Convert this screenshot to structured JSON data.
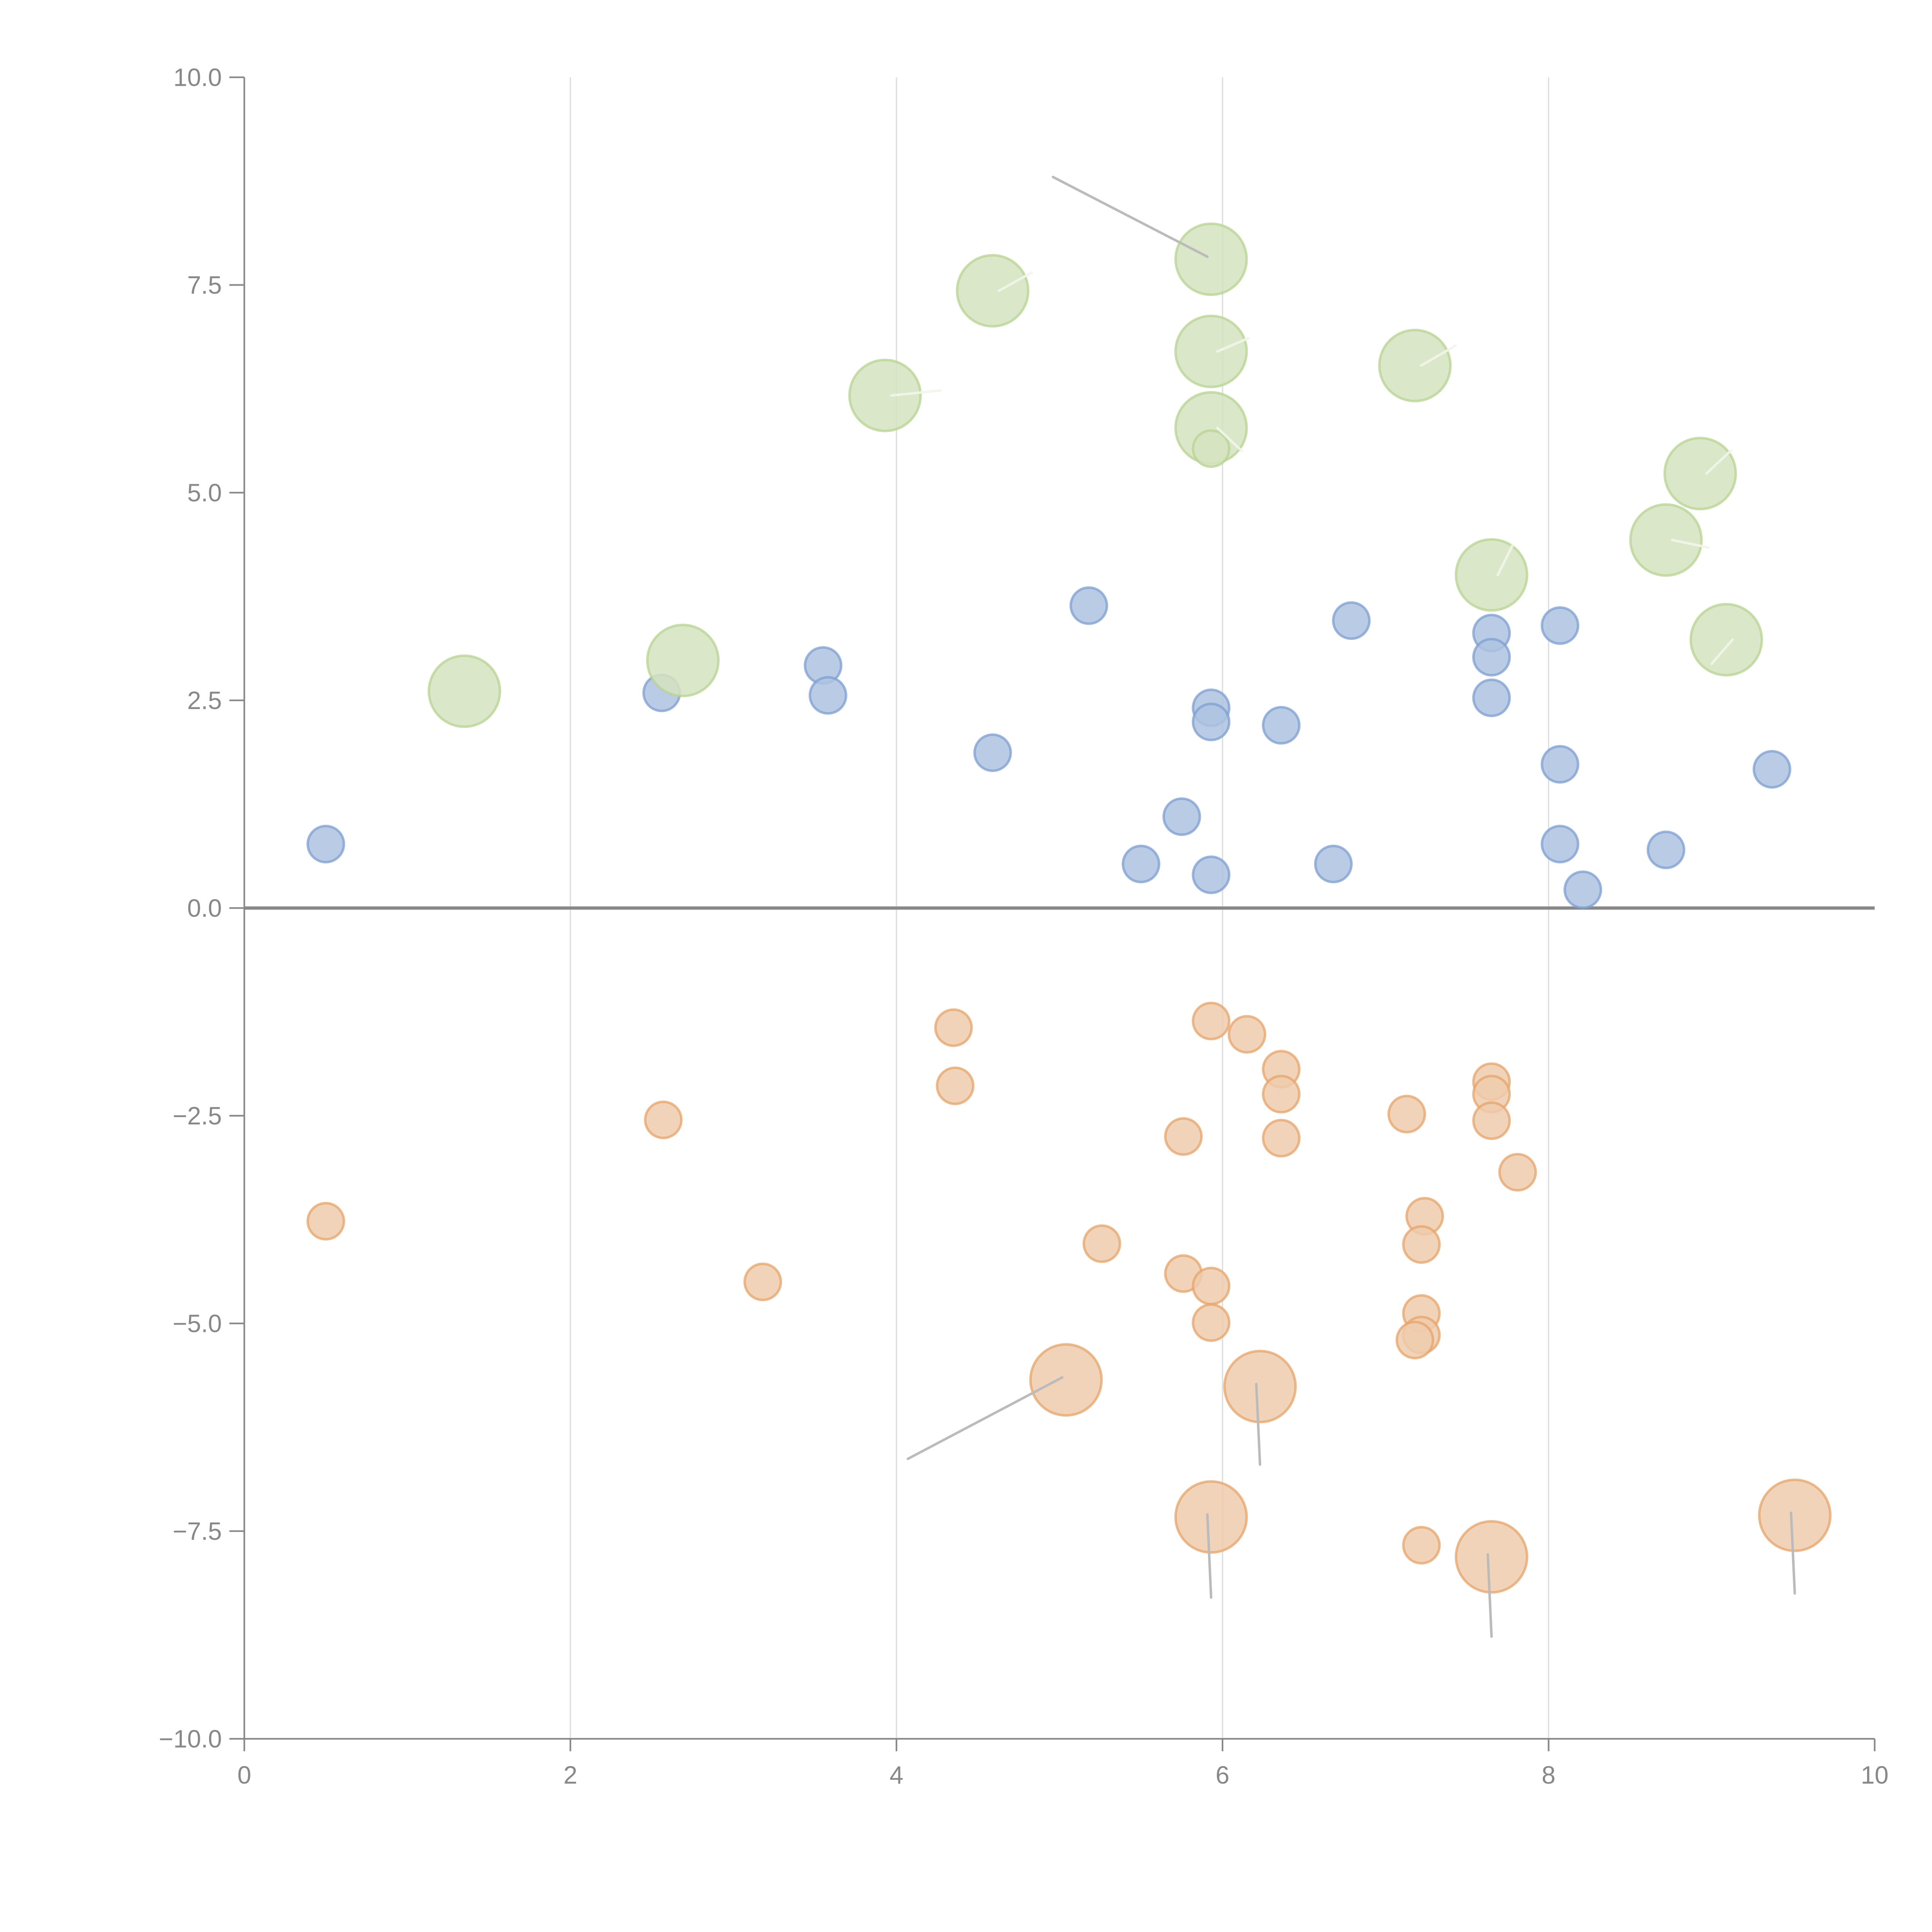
{
  "chart_data": {
    "type": "scatter",
    "title": "",
    "xlabel": "",
    "ylabel": "",
    "xlim": [
      0,
      10
    ],
    "ylim": [
      -10,
      10
    ],
    "grid": "vertical",
    "x_ticks": [
      0,
      2,
      4,
      6,
      8,
      10
    ],
    "x_tick_labels": [
      "0",
      "2",
      "4",
      "6",
      "8",
      "10"
    ],
    "y_ticks": [
      10,
      7.5,
      5,
      2.5,
      0,
      -2.5,
      -5,
      -7.5,
      -10
    ],
    "y_tick_labels": [
      "10.0",
      "7.5",
      "5.0",
      "2.5",
      "0.0",
      "−2.5",
      "−5.0",
      "−7.5",
      "−10.0"
    ],
    "series": [
      {
        "name": "blue",
        "color": "#aec3e0",
        "stroke": "#7d9fd0",
        "size": "small",
        "points": [
          {
            "x": 0.5,
            "y": 0.77
          },
          {
            "x": 2.56,
            "y": 2.59
          },
          {
            "x": 3.55,
            "y": 2.92
          },
          {
            "x": 3.58,
            "y": 2.56
          },
          {
            "x": 4.59,
            "y": 1.87
          },
          {
            "x": 5.18,
            "y": 3.64
          },
          {
            "x": 5.5,
            "y": 0.53
          },
          {
            "x": 5.75,
            "y": 1.1
          },
          {
            "x": 5.93,
            "y": 2.41
          },
          {
            "x": 5.93,
            "y": 2.24
          },
          {
            "x": 5.93,
            "y": 0.4
          },
          {
            "x": 6.36,
            "y": 2.2
          },
          {
            "x": 6.68,
            "y": 0.53
          },
          {
            "x": 6.79,
            "y": 3.46
          },
          {
            "x": 7.65,
            "y": 3.31
          },
          {
            "x": 7.65,
            "y": 3.02
          },
          {
            "x": 7.65,
            "y": 2.53
          },
          {
            "x": 8.07,
            "y": 3.4
          },
          {
            "x": 8.07,
            "y": 1.73
          },
          {
            "x": 8.07,
            "y": 0.77
          },
          {
            "x": 8.21,
            "y": 0.22
          },
          {
            "x": 8.72,
            "y": 0.7
          },
          {
            "x": 9.37,
            "y": 1.67
          }
        ]
      },
      {
        "name": "green",
        "color": "#d5e3bf",
        "stroke": "#b8d392",
        "points": [
          {
            "x": 1.35,
            "y": 2.61,
            "size": "large"
          },
          {
            "x": 2.69,
            "y": 2.98,
            "size": "large"
          },
          {
            "x": 3.93,
            "y": 6.17,
            "size": "large",
            "leader": "light",
            "leader_to": [
              4.27,
              6.23
            ]
          },
          {
            "x": 4.59,
            "y": 7.43,
            "size": "large",
            "leader": "light",
            "leader_to": [
              4.83,
              7.65
            ]
          },
          {
            "x": 5.93,
            "y": 7.81,
            "size": "large",
            "leader": "dark",
            "leader_to": [
              4.96,
              8.8
            ]
          },
          {
            "x": 5.93,
            "y": 6.7,
            "size": "large",
            "leader": "light",
            "leader_to": [
              6.16,
              6.86
            ]
          },
          {
            "x": 5.93,
            "y": 5.78,
            "size": "large",
            "leader": "light",
            "leader_to": [
              6.12,
              5.5
            ]
          },
          {
            "x": 5.93,
            "y": 5.53,
            "size": "small"
          },
          {
            "x": 7.18,
            "y": 6.53,
            "size": "large",
            "leader": "light",
            "leader_to": [
              7.43,
              6.77
            ]
          },
          {
            "x": 7.65,
            "y": 4.01,
            "size": "large",
            "leader": "light",
            "leader_to": [
              7.78,
              4.37
            ]
          },
          {
            "x": 8.72,
            "y": 4.43,
            "size": "large",
            "leader": "light",
            "leader_to": [
              8.98,
              4.34
            ]
          },
          {
            "x": 8.93,
            "y": 5.23,
            "size": "large",
            "leader": "light",
            "leader_to": [
              9.12,
              5.51
            ]
          },
          {
            "x": 9.09,
            "y": 3.23,
            "size": "large",
            "leader": "light",
            "leader_to": [
              9.0,
              2.94
            ]
          }
        ]
      },
      {
        "name": "orange",
        "color": "#efcbad",
        "stroke": "#e6a46b",
        "points": [
          {
            "x": 0.5,
            "y": -3.77,
            "size": "small"
          },
          {
            "x": 2.57,
            "y": -2.55,
            "size": "small"
          },
          {
            "x": 3.18,
            "y": -4.5,
            "size": "small"
          },
          {
            "x": 4.35,
            "y": -1.44,
            "size": "small"
          },
          {
            "x": 4.36,
            "y": -2.14,
            "size": "small"
          },
          {
            "x": 5.26,
            "y": -4.04,
            "size": "small"
          },
          {
            "x": 5.76,
            "y": -2.75,
            "size": "small"
          },
          {
            "x": 5.76,
            "y": -4.4,
            "size": "small"
          },
          {
            "x": 5.93,
            "y": -1.36,
            "size": "small"
          },
          {
            "x": 5.93,
            "y": -4.55,
            "size": "small"
          },
          {
            "x": 5.93,
            "y": -4.99,
            "size": "small"
          },
          {
            "x": 6.15,
            "y": -1.52,
            "size": "small"
          },
          {
            "x": 6.36,
            "y": -1.94,
            "size": "small"
          },
          {
            "x": 6.36,
            "y": -2.24,
            "size": "small"
          },
          {
            "x": 6.36,
            "y": -2.77,
            "size": "small"
          },
          {
            "x": 7.13,
            "y": -2.48,
            "size": "small"
          },
          {
            "x": 7.24,
            "y": -3.71,
            "size": "small"
          },
          {
            "x": 7.22,
            "y": -4.05,
            "size": "small"
          },
          {
            "x": 7.22,
            "y": -4.88,
            "size": "small"
          },
          {
            "x": 7.22,
            "y": -5.14,
            "size": "small"
          },
          {
            "x": 7.18,
            "y": -5.2,
            "size": "small"
          },
          {
            "x": 7.22,
            "y": -7.67,
            "size": "small"
          },
          {
            "x": 7.65,
            "y": -2.09,
            "size": "small"
          },
          {
            "x": 7.65,
            "y": -2.24,
            "size": "small"
          },
          {
            "x": 7.65,
            "y": -2.56,
            "size": "small"
          },
          {
            "x": 7.81,
            "y": -3.18,
            "size": "small"
          },
          {
            "x": 5.04,
            "y": -5.68,
            "size": "large",
            "leader": "dark",
            "leader_to": [
              4.07,
              -6.63
            ]
          },
          {
            "x": 6.23,
            "y": -5.76,
            "size": "large",
            "leader": "dark",
            "leader_to": [
              6.23,
              -6.7
            ]
          },
          {
            "x": 5.93,
            "y": -7.33,
            "size": "large",
            "leader": "dark",
            "leader_to": [
              5.93,
              -8.3
            ]
          },
          {
            "x": 7.65,
            "y": -7.81,
            "size": "large",
            "leader": "dark",
            "leader_to": [
              7.65,
              -8.77
            ]
          },
          {
            "x": 9.51,
            "y": -7.31,
            "size": "large",
            "leader": "dark",
            "leader_to": [
              9.51,
              -8.25
            ]
          }
        ]
      }
    ]
  }
}
